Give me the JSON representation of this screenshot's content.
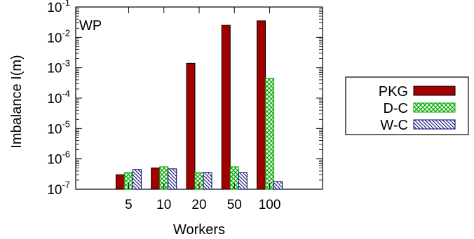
{
  "chart_data": {
    "type": "bar",
    "title": "",
    "panel_label": "WP",
    "xlabel": "Workers",
    "ylabel": "Imbalance I(m)",
    "y_scale": "log",
    "ylim": [
      1e-07,
      0.1
    ],
    "y_ticks": [
      {
        "value": 1e-07,
        "base": "10",
        "exp": "-7"
      },
      {
        "value": 1e-06,
        "base": "10",
        "exp": "-6"
      },
      {
        "value": 1e-05,
        "base": "10",
        "exp": "-5"
      },
      {
        "value": 0.0001,
        "base": "10",
        "exp": "-4"
      },
      {
        "value": 0.001,
        "base": "10",
        "exp": "-3"
      },
      {
        "value": 0.01,
        "base": "10",
        "exp": "-2"
      },
      {
        "value": 0.1,
        "base": "10",
        "exp": "-1"
      }
    ],
    "categories": [
      "5",
      "10",
      "20",
      "50",
      "100"
    ],
    "series": [
      {
        "name": "PKG",
        "color": "#a10000",
        "pattern": "solid",
        "values": [
          3e-07,
          5e-07,
          0.0014,
          0.025,
          0.035
        ]
      },
      {
        "name": "D-C",
        "color": "#00aa00",
        "pattern": "crosshatch",
        "values": [
          3.5e-07,
          5.5e-07,
          3.5e-07,
          5.5e-07,
          0.00045
        ]
      },
      {
        "name": "W-C",
        "color": "#00006e",
        "pattern": "diagonal",
        "values": [
          4.5e-07,
          4.7e-07,
          3.5e-07,
          3.5e-07,
          1.8e-07
        ]
      }
    ],
    "grid": false,
    "legend_position": "outside-right"
  }
}
